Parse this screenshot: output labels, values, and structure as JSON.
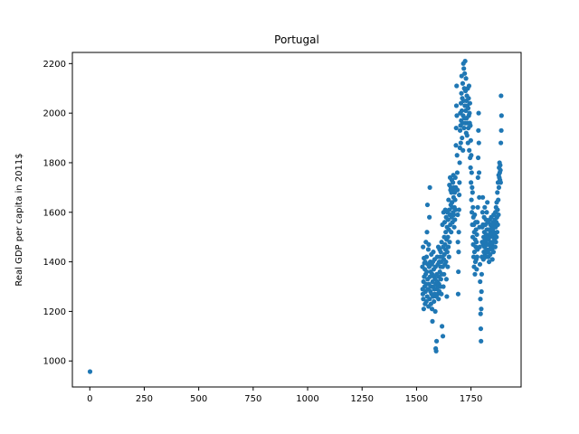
{
  "chart_data": {
    "type": "scatter",
    "title": "Portugal",
    "xlabel": "",
    "ylabel": "Real GDP per capita in 2011$",
    "xlim": [
      -80,
      1980
    ],
    "ylim": [
      895,
      2245
    ],
    "xticks": [
      0,
      250,
      500,
      750,
      1000,
      1250,
      1500,
      1750
    ],
    "yticks": [
      1000,
      1200,
      1400,
      1600,
      1800,
      2000,
      2200
    ],
    "grid": false,
    "legend": "none",
    "marker_color": "#1f77b4",
    "points": [
      [
        1,
        957
      ],
      [
        1527,
        1380
      ],
      [
        1528,
        1290
      ],
      [
        1529,
        1270
      ],
      [
        1530,
        1460
      ],
      [
        1531,
        1250
      ],
      [
        1532,
        1320
      ],
      [
        1533,
        1210
      ],
      [
        1534,
        1415
      ],
      [
        1535,
        1340
      ],
      [
        1536,
        1395
      ],
      [
        1537,
        1300
      ],
      [
        1538,
        1370
      ],
      [
        1539,
        1230
      ],
      [
        1540,
        1400
      ],
      [
        1541,
        1280
      ],
      [
        1542,
        1350
      ],
      [
        1543,
        1480
      ],
      [
        1544,
        1310
      ],
      [
        1545,
        1240
      ],
      [
        1546,
        1420
      ],
      [
        1547,
        1360
      ],
      [
        1548,
        1520
      ],
      [
        1549,
        1260
      ],
      [
        1550,
        1630
      ],
      [
        1551,
        1330
      ],
      [
        1552,
        1390
      ],
      [
        1553,
        1290
      ],
      [
        1554,
        1450
      ],
      [
        1555,
        1220
      ],
      [
        1556,
        1470
      ],
      [
        1557,
        1310
      ],
      [
        1558,
        1380
      ],
      [
        1559,
        1580
      ],
      [
        1560,
        1250
      ],
      [
        1561,
        1700
      ],
      [
        1562,
        1340
      ],
      [
        1563,
        1400
      ],
      [
        1564,
        1280
      ],
      [
        1565,
        1360
      ],
      [
        1566,
        1230
      ],
      [
        1567,
        1300
      ],
      [
        1568,
        1430
      ],
      [
        1569,
        1270
      ],
      [
        1570,
        1390
      ],
      [
        1571,
        1210
      ],
      [
        1572,
        1350
      ],
      [
        1573,
        1160
      ],
      [
        1574,
        1320
      ],
      [
        1575,
        1400
      ],
      [
        1576,
        1260
      ],
      [
        1577,
        1440
      ],
      [
        1578,
        1300
      ],
      [
        1579,
        1370
      ],
      [
        1580,
        1240
      ],
      [
        1581,
        1340
      ],
      [
        1582,
        1290
      ],
      [
        1583,
        1410
      ],
      [
        1584,
        1270
      ],
      [
        1585,
        1330
      ],
      [
        1586,
        1200
      ],
      [
        1587,
        1380
      ],
      [
        1588,
        1050
      ],
      [
        1589,
        1310
      ],
      [
        1590,
        1040
      ],
      [
        1591,
        1260
      ],
      [
        1592,
        1080
      ],
      [
        1593,
        1350
      ],
      [
        1594,
        1290
      ],
      [
        1595,
        1420
      ],
      [
        1596,
        1320
      ],
      [
        1597,
        1270
      ],
      [
        1598,
        1390
      ],
      [
        1599,
        1300
      ],
      [
        1600,
        1460
      ],
      [
        1601,
        1250
      ],
      [
        1602,
        1340
      ],
      [
        1603,
        1310
      ],
      [
        1604,
        1400
      ],
      [
        1605,
        1280
      ],
      [
        1606,
        1450
      ],
      [
        1607,
        1360
      ],
      [
        1608,
        1420
      ],
      [
        1609,
        1300
      ],
      [
        1610,
        1380
      ],
      [
        1611,
        1440
      ],
      [
        1612,
        1330
      ],
      [
        1613,
        1400
      ],
      [
        1614,
        1270
      ],
      [
        1615,
        1480
      ],
      [
        1616,
        1350
      ],
      [
        1617,
        1140
      ],
      [
        1618,
        1420
      ],
      [
        1619,
        1550
      ],
      [
        1620,
        1380
      ],
      [
        1621,
        1100
      ],
      [
        1622,
        1460
      ],
      [
        1623,
        1300
      ],
      [
        1624,
        1600
      ],
      [
        1625,
        1410
      ],
      [
        1626,
        1350
      ],
      [
        1627,
        1500
      ],
      [
        1628,
        1430
      ],
      [
        1629,
        1560
      ],
      [
        1630,
        1390
      ],
      [
        1631,
        1470
      ],
      [
        1632,
        1610
      ],
      [
        1633,
        1450
      ],
      [
        1634,
        1520
      ],
      [
        1635,
        1400
      ],
      [
        1636,
        1580
      ],
      [
        1637,
        1330
      ],
      [
        1638,
        1490
      ],
      [
        1639,
        1260
      ],
      [
        1640,
        1540
      ],
      [
        1641,
        1440
      ],
      [
        1642,
        1600
      ],
      [
        1643,
        1380
      ],
      [
        1644,
        1500
      ],
      [
        1645,
        1570
      ],
      [
        1646,
        1460
      ],
      [
        1647,
        1650
      ],
      [
        1648,
        1530
      ],
      [
        1649,
        1420
      ],
      [
        1650,
        1610
      ],
      [
        1651,
        1710
      ],
      [
        1652,
        1480
      ],
      [
        1653,
        1590
      ],
      [
        1654,
        1740
      ],
      [
        1655,
        1550
      ],
      [
        1656,
        1690
      ],
      [
        1657,
        1630
      ],
      [
        1658,
        1700
      ],
      [
        1659,
        1520
      ],
      [
        1660,
        1680
      ],
      [
        1661,
        1580
      ],
      [
        1662,
        1730
      ],
      [
        1663,
        1640
      ],
      [
        1664,
        1620
      ],
      [
        1665,
        1560
      ],
      [
        1666,
        1690
      ],
      [
        1667,
        1720
      ],
      [
        1668,
        1600
      ],
      [
        1669,
        1750
      ],
      [
        1670,
        1660
      ],
      [
        1671,
        1590
      ],
      [
        1672,
        1700
      ],
      [
        1673,
        1540
      ],
      [
        1674,
        1620
      ],
      [
        1675,
        1680
      ],
      [
        1676,
        1570
      ],
      [
        1677,
        1650
      ],
      [
        1678,
        1740
      ],
      [
        1679,
        1610
      ],
      [
        1680,
        1700
      ],
      [
        1681,
        1870
      ],
      [
        1682,
        1940
      ],
      [
        1683,
        2030
      ],
      [
        1684,
        2110
      ],
      [
        1685,
        1990
      ],
      [
        1686,
        1830
      ],
      [
        1687,
        1760
      ],
      [
        1688,
        1690
      ],
      [
        1689,
        1590
      ],
      [
        1690,
        1480
      ],
      [
        1691,
        1270
      ],
      [
        1692,
        1360
      ],
      [
        1693,
        1440
      ],
      [
        1694,
        1520
      ],
      [
        1695,
        1610
      ],
      [
        1696,
        1670
      ],
      [
        1697,
        1720
      ],
      [
        1698,
        1800
      ],
      [
        1699,
        1860
      ],
      [
        1700,
        1930
      ],
      [
        1701,
        2000
      ],
      [
        1702,
        1950
      ],
      [
        1703,
        1880
      ],
      [
        1704,
        2040
      ],
      [
        1705,
        1970
      ],
      [
        1706,
        2080
      ],
      [
        1707,
        2150
      ],
      [
        1708,
        2010
      ],
      [
        1709,
        1900
      ],
      [
        1710,
        2060
      ],
      [
        1711,
        1960
      ],
      [
        1712,
        2120
      ],
      [
        1713,
        1850
      ],
      [
        1714,
        1990
      ],
      [
        1715,
        2200
      ],
      [
        1716,
        2050
      ],
      [
        1717,
        2180
      ],
      [
        1718,
        1940
      ],
      [
        1719,
        2100
      ],
      [
        1720,
        1980
      ],
      [
        1721,
        2160
      ],
      [
        1722,
        2030
      ],
      [
        1723,
        2210
      ],
      [
        1724,
        1960
      ],
      [
        1725,
        2090
      ],
      [
        1726,
        2010
      ],
      [
        1727,
        2140
      ],
      [
        1728,
        1920
      ],
      [
        1729,
        2050
      ],
      [
        1730,
        1980
      ],
      [
        1731,
        2070
      ],
      [
        1732,
        1910
      ],
      [
        1733,
        2030
      ],
      [
        1734,
        1960
      ],
      [
        1735,
        2100
      ],
      [
        1736,
        1880
      ],
      [
        1737,
        2020
      ],
      [
        1738,
        1940
      ],
      [
        1739,
        2060
      ],
      [
        1740,
        1990
      ],
      [
        1741,
        2110
      ],
      [
        1742,
        1850
      ],
      [
        1743,
        2000
      ],
      [
        1744,
        1960
      ],
      [
        1745,
        2040
      ],
      [
        1746,
        1820
      ],
      [
        1747,
        1950
      ],
      [
        1748,
        1780
      ],
      [
        1749,
        1890
      ],
      [
        1750,
        1720
      ],
      [
        1751,
        1830
      ],
      [
        1752,
        1650
      ],
      [
        1753,
        1760
      ],
      [
        1754,
        1600
      ],
      [
        1755,
        1700
      ],
      [
        1756,
        1550
      ],
      [
        1757,
        1680
      ],
      [
        1758,
        1500
      ],
      [
        1759,
        1620
      ],
      [
        1760,
        1470
      ],
      [
        1761,
        1580
      ],
      [
        1762,
        1420
      ],
      [
        1763,
        1550
      ],
      [
        1764,
        1380
      ],
      [
        1765,
        1520
      ],
      [
        1766,
        1440
      ],
      [
        1767,
        1590
      ],
      [
        1768,
        1350
      ],
      [
        1769,
        1490
      ],
      [
        1770,
        1400
      ],
      [
        1771,
        1560
      ],
      [
        1772,
        1460
      ],
      [
        1773,
        1530
      ],
      [
        1774,
        1410
      ],
      [
        1775,
        1480
      ],
      [
        1776,
        1370
      ],
      [
        1777,
        1510
      ],
      [
        1778,
        1420
      ],
      [
        1779,
        1560
      ],
      [
        1780,
        1450
      ],
      [
        1781,
        1620
      ],
      [
        1782,
        1740
      ],
      [
        1783,
        1820
      ],
      [
        1784,
        1930
      ],
      [
        1785,
        2000
      ],
      [
        1786,
        1880
      ],
      [
        1787,
        1760
      ],
      [
        1788,
        1660
      ],
      [
        1789,
        1540
      ],
      [
        1790,
        1460
      ],
      [
        1791,
        1390
      ],
      [
        1792,
        1320
      ],
      [
        1793,
        1250
      ],
      [
        1794,
        1190
      ],
      [
        1795,
        1130
      ],
      [
        1796,
        1080
      ],
      [
        1797,
        1210
      ],
      [
        1798,
        1280
      ],
      [
        1799,
        1350
      ],
      [
        1800,
        1420
      ],
      [
        1801,
        1480
      ],
      [
        1802,
        1540
      ],
      [
        1803,
        1600
      ],
      [
        1804,
        1660
      ],
      [
        1805,
        1550
      ],
      [
        1806,
        1470
      ],
      [
        1807,
        1410
      ],
      [
        1808,
        1500
      ],
      [
        1809,
        1440
      ],
      [
        1810,
        1580
      ],
      [
        1811,
        1520
      ],
      [
        1812,
        1460
      ],
      [
        1813,
        1620
      ],
      [
        1814,
        1490
      ],
      [
        1815,
        1430
      ],
      [
        1816,
        1550
      ],
      [
        1817,
        1480
      ],
      [
        1818,
        1420
      ],
      [
        1819,
        1570
      ],
      [
        1820,
        1510
      ],
      [
        1821,
        1450
      ],
      [
        1822,
        1600
      ],
      [
        1823,
        1530
      ],
      [
        1824,
        1470
      ],
      [
        1825,
        1640
      ],
      [
        1826,
        1500
      ],
      [
        1827,
        1440
      ],
      [
        1828,
        1560
      ],
      [
        1829,
        1490
      ],
      [
        1830,
        1420
      ],
      [
        1831,
        1530
      ],
      [
        1832,
        1470
      ],
      [
        1833,
        1400
      ],
      [
        1834,
        1510
      ],
      [
        1835,
        1450
      ],
      [
        1836,
        1570
      ],
      [
        1837,
        1500
      ],
      [
        1838,
        1430
      ],
      [
        1839,
        1550
      ],
      [
        1840,
        1480
      ],
      [
        1841,
        1520
      ],
      [
        1842,
        1460
      ],
      [
        1843,
        1580
      ],
      [
        1844,
        1510
      ],
      [
        1845,
        1450
      ],
      [
        1846,
        1540
      ],
      [
        1847,
        1470
      ],
      [
        1848,
        1410
      ],
      [
        1849,
        1530
      ],
      [
        1850,
        1480
      ],
      [
        1851,
        1560
      ],
      [
        1852,
        1500
      ],
      [
        1853,
        1440
      ],
      [
        1854,
        1590
      ],
      [
        1855,
        1520
      ],
      [
        1856,
        1460
      ],
      [
        1857,
        1550
      ],
      [
        1858,
        1490
      ],
      [
        1859,
        1570
      ],
      [
        1860,
        1510
      ],
      [
        1861,
        1460
      ],
      [
        1862,
        1600
      ],
      [
        1863,
        1540
      ],
      [
        1864,
        1480
      ],
      [
        1865,
        1620
      ],
      [
        1866,
        1560
      ],
      [
        1867,
        1500
      ],
      [
        1868,
        1640
      ],
      [
        1869,
        1580
      ],
      [
        1870,
        1520
      ],
      [
        1871,
        1680
      ],
      [
        1872,
        1610
      ],
      [
        1873,
        1550
      ],
      [
        1874,
        1720
      ],
      [
        1875,
        1650
      ],
      [
        1876,
        1590
      ],
      [
        1877,
        1750
      ],
      [
        1878,
        1700
      ],
      [
        1879,
        1780
      ],
      [
        1880,
        1740
      ],
      [
        1881,
        1800
      ],
      [
        1882,
        1760
      ],
      [
        1883,
        1730
      ],
      [
        1884,
        1790
      ],
      [
        1885,
        1770
      ],
      [
        1886,
        1720
      ],
      [
        1887,
        1880
      ],
      [
        1888,
        2070
      ],
      [
        1889,
        1930
      ],
      [
        1890,
        1990
      ]
    ]
  }
}
